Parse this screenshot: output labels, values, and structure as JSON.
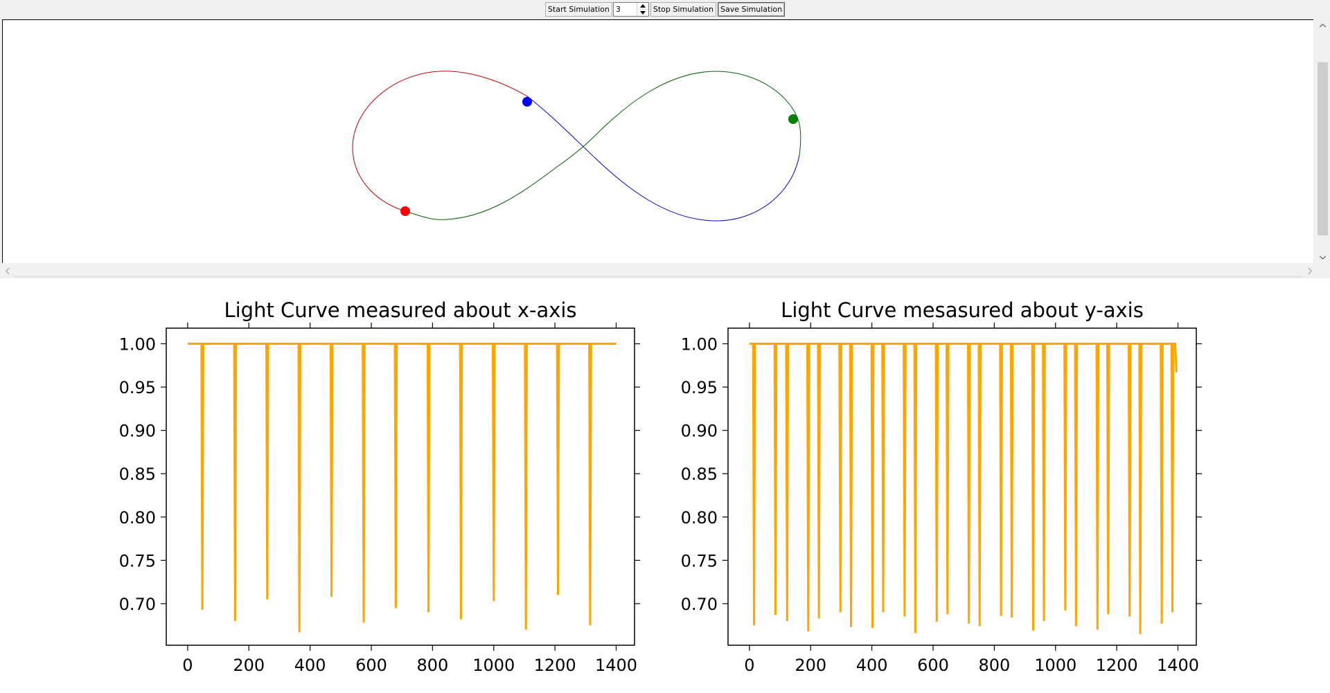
{
  "toolbar": {
    "start_label": "Start Simulation",
    "spin_value": "3",
    "stop_label": "Stop Simulation",
    "save_label": "Save Simulation"
  },
  "simulation": {
    "bodies": [
      {
        "name": "red-body",
        "color": "#ff0000"
      },
      {
        "name": "blue-body",
        "color": "#0000ff"
      },
      {
        "name": "green-body",
        "color": "#008000"
      }
    ]
  },
  "chart_data": [
    {
      "type": "line",
      "title": "Light Curve measured about x-axis",
      "color": "#ffa500",
      "xlim": [
        -70,
        1460
      ],
      "ylim": [
        0.652,
        1.018
      ],
      "xticks": [
        "0",
        "200",
        "400",
        "600",
        "800",
        "1000",
        "1200",
        "1400"
      ],
      "yticks": [
        "1.00",
        "0.95",
        "0.90",
        "0.85",
        "0.80",
        "0.75",
        "0.70"
      ],
      "baseline": 1.0,
      "x_range": [
        0,
        1400
      ],
      "dips": [
        [
          48,
          0.693
        ],
        [
          155,
          0.68
        ],
        [
          260,
          0.705
        ],
        [
          365,
          0.667
        ],
        [
          470,
          0.708
        ],
        [
          575,
          0.678
        ],
        [
          680,
          0.695
        ],
        [
          787,
          0.69
        ],
        [
          893,
          0.682
        ],
        [
          1000,
          0.703
        ],
        [
          1105,
          0.67
        ],
        [
          1210,
          0.71
        ],
        [
          1315,
          0.675
        ]
      ]
    },
    {
      "type": "line",
      "title": "Light Curve mesasured about y-axis",
      "color": "#ffa500",
      "xlim": [
        -70,
        1460
      ],
      "ylim": [
        0.652,
        1.018
      ],
      "xticks": [
        "0",
        "200",
        "400",
        "600",
        "800",
        "1000",
        "1200",
        "1400"
      ],
      "yticks": [
        "1.00",
        "0.95",
        "0.90",
        "0.85",
        "0.80",
        "0.75",
        "0.70"
      ],
      "baseline": 1.0,
      "x_range": [
        0,
        1395
      ],
      "end_value": 0.967,
      "dips": [
        [
          15,
          0.675
        ],
        [
          85,
          0.687
        ],
        [
          123,
          0.68
        ],
        [
          192,
          0.668
        ],
        [
          227,
          0.683
        ],
        [
          297,
          0.69
        ],
        [
          332,
          0.673
        ],
        [
          402,
          0.672
        ],
        [
          437,
          0.69
        ],
        [
          507,
          0.685
        ],
        [
          542,
          0.666
        ],
        [
          612,
          0.679
        ],
        [
          647,
          0.688
        ],
        [
          717,
          0.677
        ],
        [
          752,
          0.674
        ],
        [
          822,
          0.686
        ],
        [
          857,
          0.684
        ],
        [
          927,
          0.669
        ],
        [
          962,
          0.68
        ],
        [
          1032,
          0.692
        ],
        [
          1067,
          0.674
        ],
        [
          1137,
          0.67
        ],
        [
          1172,
          0.688
        ],
        [
          1242,
          0.685
        ],
        [
          1277,
          0.665
        ],
        [
          1347,
          0.677
        ],
        [
          1382,
          0.69
        ]
      ]
    }
  ]
}
